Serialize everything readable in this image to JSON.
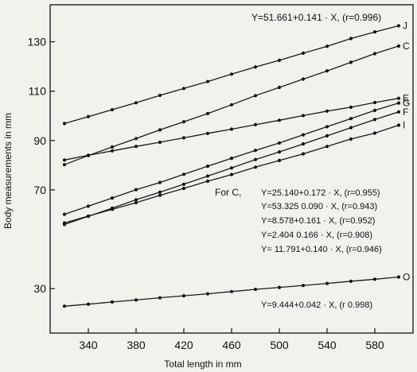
{
  "chart_data": {
    "type": "line",
    "xlabel": "Total length in mm",
    "ylabel": "Body measurements in mm",
    "xlim": [
      308,
      612
    ],
    "ylim": [
      12,
      145
    ],
    "x_ticks": [
      340,
      380,
      420,
      460,
      500,
      540,
      580
    ],
    "y_ticks": [
      30,
      70,
      90,
      110,
      130
    ],
    "grid": false,
    "legend": "none",
    "series": [
      {
        "name": "J",
        "x": [
          320,
          340,
          360,
          380,
          400,
          420,
          440,
          460,
          480,
          500,
          520,
          540,
          560,
          580,
          600
        ],
        "values": [
          96.9,
          99.7,
          102.5,
          105.3,
          108.3,
          111.1,
          113.9,
          116.9,
          119.8,
          122.5,
          125.4,
          128.2,
          131.3,
          134.0,
          136.5
        ]
      },
      {
        "name": "C",
        "x": [
          320,
          340,
          360,
          380,
          400,
          420,
          440,
          460,
          480,
          500,
          520,
          540,
          560,
          580,
          600
        ],
        "values": [
          80.2,
          83.9,
          87.4,
          90.8,
          94.3,
          97.6,
          100.9,
          104.5,
          108.2,
          111.5,
          114.9,
          118.2,
          121.7,
          125.2,
          128.3
        ]
      },
      {
        "name": "E",
        "x": [
          320,
          340,
          360,
          380,
          400,
          420,
          440,
          460,
          480,
          500,
          520,
          540,
          560,
          580,
          600
        ],
        "values": [
          82.1,
          84.0,
          85.8,
          87.6,
          89.3,
          91.1,
          92.9,
          94.6,
          96.4,
          98.2,
          100.1,
          101.9,
          103.5,
          105.4,
          107.1
        ]
      },
      {
        "name": "G",
        "x": [
          320,
          340,
          360,
          380,
          400,
          420,
          440,
          460,
          480,
          500,
          520,
          540,
          560,
          580,
          600
        ],
        "values": [
          60.1,
          63.4,
          66.7,
          70.1,
          73.0,
          76.3,
          79.6,
          82.8,
          86.0,
          89.0,
          92.3,
          95.6,
          98.9,
          102.2,
          105.2
        ]
      },
      {
        "name": "F",
        "x": [
          320,
          340,
          360,
          380,
          400,
          420,
          440,
          460,
          480,
          500,
          520,
          540,
          560,
          580,
          600
        ],
        "values": [
          56.0,
          59.3,
          62.6,
          66.0,
          69.1,
          72.3,
          75.6,
          78.9,
          82.3,
          85.4,
          88.6,
          91.9,
          95.2,
          98.5,
          101.6
        ]
      },
      {
        "name": "I",
        "x": [
          320,
          340,
          360,
          380,
          400,
          420,
          440,
          460,
          480,
          500,
          520,
          540,
          560,
          580,
          600
        ],
        "values": [
          56.6,
          59.4,
          62.1,
          64.8,
          67.8,
          70.6,
          73.5,
          76.2,
          79.2,
          81.9,
          84.6,
          87.6,
          90.6,
          93.0,
          96.2
        ]
      },
      {
        "name": "O",
        "x": [
          320,
          340,
          360,
          380,
          400,
          420,
          440,
          460,
          480,
          500,
          520,
          540,
          560,
          580,
          600
        ],
        "values": [
          22.9,
          23.7,
          24.6,
          25.4,
          26.3,
          27.1,
          27.9,
          28.8,
          29.7,
          30.5,
          31.3,
          32.1,
          33.0,
          33.8,
          34.7
        ]
      }
    ],
    "annotations": {
      "eq_top": "Y=51.661+0.141 · X, (r=0.996)",
      "for_c_prefix": "For C,",
      "eq_c": "Y=25.140+0.172 · X, (r=0.955)",
      "eq_e": "Y=53.325 0.090 · X, (r=0.943)",
      "eq_g": "Y=8.578+0.161 · X, (r=0.952)",
      "eq_f": "Y=2.404 0.166 · X, (r=0.908)",
      "eq_i": "Y= 11.791+0.140 · X, (r=0.946)",
      "eq_o": "Y=9.444+0.042 · X, (r 0.998)"
    }
  }
}
